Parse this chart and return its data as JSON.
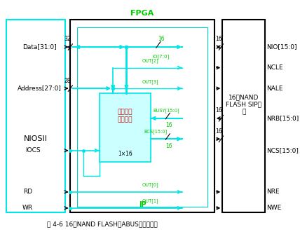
{
  "title": "图 4-6 16位NAND FLASH的ABUS接口设计图",
  "fpga_label": "FPGA",
  "ip_label": "IP",
  "niosii_label": "NIOSII",
  "right_block_lines": [
    "16位NAND",
    "FLASH SIP模",
    "块"
  ],
  "inner_box_lines": [
    "片选和状",
    "态寄存器"
  ],
  "inner_box_sublabel": "1×16",
  "bg": "#ffffff",
  "cyan": "#00e5e5",
  "green": "#00cc00",
  "red_text": "#cc0000",
  "black": "#000000",
  "left_box_edge": "#00dddd",
  "fpga_box_edge": "#000000",
  "right_box_edge": "#000000",
  "ip_box_edge": "#00cccc",
  "cs_box_edge": "#00cccc",
  "cs_box_face": "#ccffff",
  "signals_left": {
    "Data[31:0]": 0.78,
    "Address[27:0]": 0.6,
    "IOCS": 0.33,
    "RD": 0.15,
    "WR": 0.08
  },
  "signals_right": {
    "NIO[15:0]": 0.8,
    "NCLE": 0.69,
    "NALE": 0.6,
    "NRB[15:0]": 0.47,
    "NCS[15:0]": 0.33,
    "NRE": 0.15,
    "NWE": 0.08
  },
  "figsize": [
    4.28,
    3.31
  ],
  "dpi": 100
}
